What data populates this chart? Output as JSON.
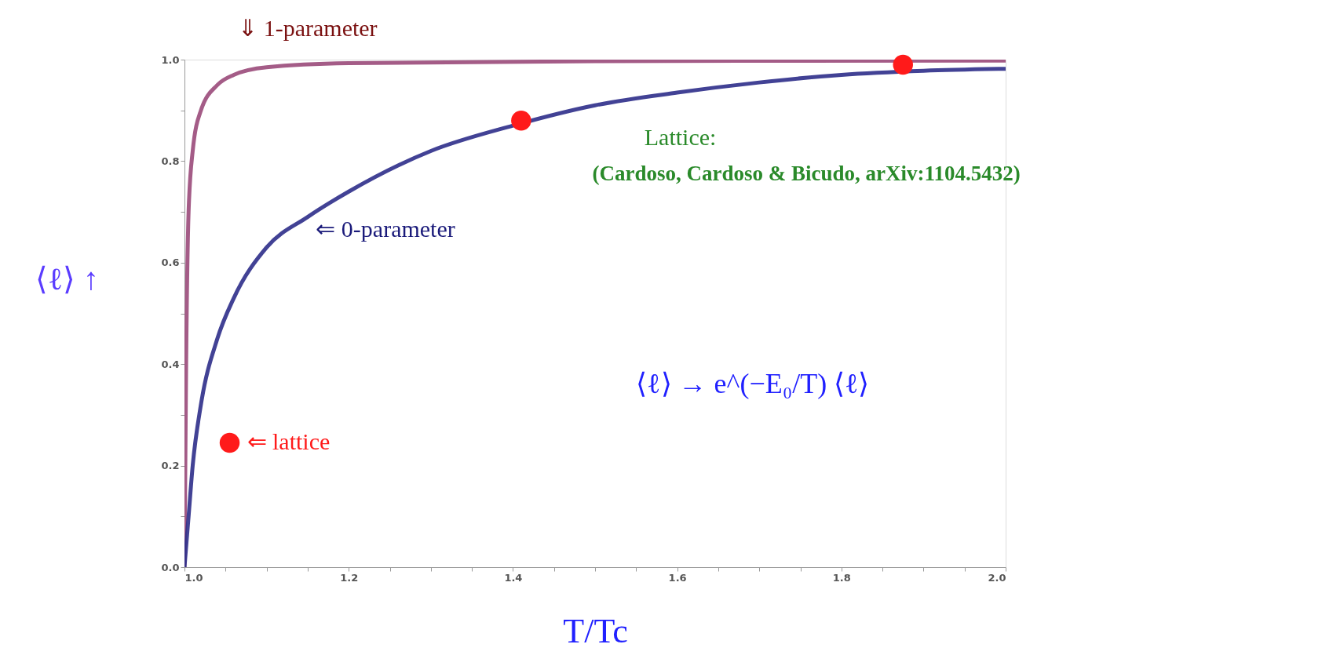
{
  "chart_data": {
    "type": "line",
    "xlabel": "T/Tc",
    "ylabel": "⟨ℓ⟩ ↑",
    "xlim": [
      1.0,
      2.0
    ],
    "ylim": [
      0.0,
      1.0
    ],
    "xticks": [
      {
        "value": 1.0,
        "label": "1.0"
      },
      {
        "value": 1.05,
        "label": null
      },
      {
        "value": 1.1,
        "label": null
      },
      {
        "value": 1.15,
        "label": null
      },
      {
        "value": 1.2,
        "label": "1.2"
      },
      {
        "value": 1.25,
        "label": null
      },
      {
        "value": 1.3,
        "label": null
      },
      {
        "value": 1.35,
        "label": null
      },
      {
        "value": 1.4,
        "label": "1.4"
      },
      {
        "value": 1.45,
        "label": null
      },
      {
        "value": 1.5,
        "label": null
      },
      {
        "value": 1.55,
        "label": null
      },
      {
        "value": 1.6,
        "label": "1.6"
      },
      {
        "value": 1.65,
        "label": null
      },
      {
        "value": 1.7,
        "label": null
      },
      {
        "value": 1.75,
        "label": null
      },
      {
        "value": 1.8,
        "label": "1.8"
      },
      {
        "value": 1.85,
        "label": null
      },
      {
        "value": 1.9,
        "label": null
      },
      {
        "value": 1.95,
        "label": null
      },
      {
        "value": 2.0,
        "label": "2.0"
      }
    ],
    "yticks": [
      {
        "value": 0.0,
        "label": "0.0"
      },
      {
        "value": 0.1,
        "label": null
      },
      {
        "value": 0.2,
        "label": "0.2"
      },
      {
        "value": 0.3,
        "label": null
      },
      {
        "value": 0.4,
        "label": "0.4"
      },
      {
        "value": 0.5,
        "label": null
      },
      {
        "value": 0.6,
        "label": "0.6"
      },
      {
        "value": 0.7,
        "label": null
      },
      {
        "value": 0.8,
        "label": "0.8"
      },
      {
        "value": 0.9,
        "label": null
      },
      {
        "value": 1.0,
        "label": "1.0"
      }
    ],
    "grid": false,
    "series": [
      {
        "color": "#9a4a7a",
        "x": [
          1.0,
          1.002,
          1.005,
          1.01,
          1.02,
          1.04,
          1.06,
          1.1,
          1.2,
          1.5,
          2.0
        ],
        "values": [
          0.0,
          0.4,
          0.7,
          0.82,
          0.9,
          0.95,
          0.97,
          0.985,
          0.993,
          0.997,
          0.998
        ]
      },
      {
        "color": "#2e2e8a",
        "x": [
          1.0,
          1.005,
          1.01,
          1.02,
          1.04,
          1.06,
          1.1,
          1.15,
          1.2,
          1.3,
          1.4,
          1.5,
          1.6,
          1.7,
          1.8,
          1.9,
          2.0
        ],
        "values": [
          0.0,
          0.1,
          0.2,
          0.32,
          0.45,
          0.53,
          0.63,
          0.69,
          0.74,
          0.82,
          0.87,
          0.91,
          0.935,
          0.955,
          0.97,
          0.978,
          0.982
        ]
      },
      {
        "type": "scatter",
        "color": "#ff1a1a",
        "marker": "circle",
        "x": [
          1.055,
          1.41,
          1.875
        ],
        "values": [
          0.245,
          0.88,
          0.99
        ]
      }
    ],
    "annotations": [
      "⇓ 1-parameter",
      "⇐ 0-parameter",
      {
        "text": "⇐ lattice",
        "x": 1.055,
        "y": 0.245
      },
      "Lattice:",
      "(Cardoso, Cardoso & Bicudo, arXiv:1104.5432)",
      "⟨ℓ⟩ → e^(−E₀/T) ⟨ℓ⟩"
    ]
  }
}
